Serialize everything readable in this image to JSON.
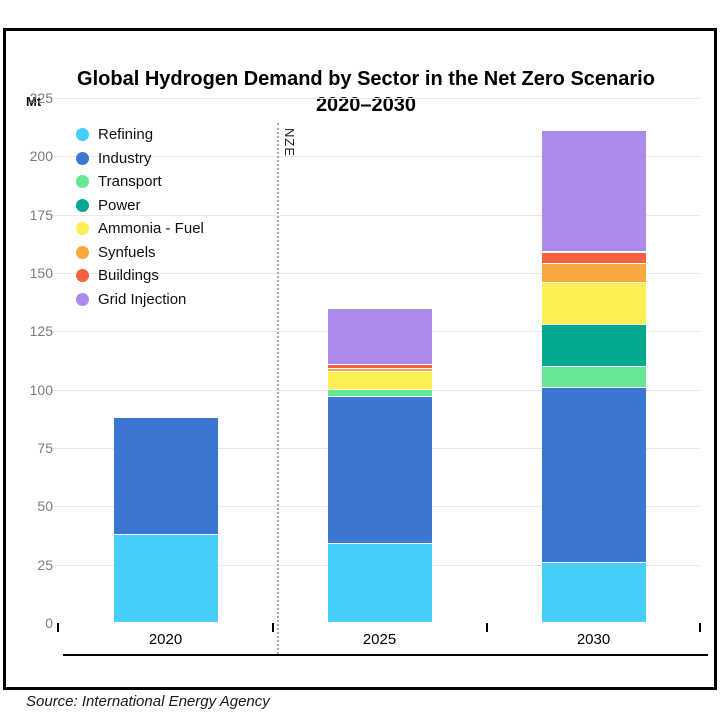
{
  "title": "Global Hydrogen Demand by Sector in the Net Zero Scenario",
  "subtitle": "2020–2030",
  "unit_label": "Mt",
  "annotation": "NZE",
  "source": "Source: International Energy Agency",
  "colors": {
    "refining": "#45CEF7",
    "industry": "#3C76D2",
    "transport": "#67E795",
    "power": "#04A88E",
    "ammonia_fuel": "#FBEF53",
    "synfuels": "#F9A73F",
    "buildings": "#F4613F",
    "grid_injection": "#AB8BE9",
    "gridline": "#e9e9e9",
    "axis": "#000000",
    "tick_label": "#7c7c7c"
  },
  "chart_data": {
    "type": "bar",
    "stacked": true,
    "title": "Global Hydrogen Demand by Sector in the Net Zero Scenario 2020–2030",
    "xlabel": "",
    "ylabel": "Mt",
    "ylim": [
      0,
      225
    ],
    "yticks": [
      0,
      25,
      50,
      75,
      100,
      125,
      150,
      175,
      200,
      225
    ],
    "grid": true,
    "legend_position": "top-left",
    "categories": [
      "2020",
      "2025",
      "2030"
    ],
    "series": [
      {
        "name": "Refining",
        "color": "#45CEF7",
        "values": [
          38,
          34,
          26
        ]
      },
      {
        "name": "Industry",
        "color": "#3C76D2",
        "values": [
          50,
          63,
          75
        ]
      },
      {
        "name": "Transport",
        "color": "#67E795",
        "values": [
          0,
          3,
          9
        ]
      },
      {
        "name": "Power",
        "color": "#04A88E",
        "values": [
          0,
          0,
          18
        ]
      },
      {
        "name": "Ammonia - Fuel",
        "color": "#FBEF53",
        "values": [
          0,
          8,
          18
        ]
      },
      {
        "name": "Synfuels",
        "color": "#F9A73F",
        "values": [
          0,
          1,
          8
        ]
      },
      {
        "name": "Buildings",
        "color": "#F4613F",
        "values": [
          0,
          2,
          5
        ]
      },
      {
        "name": "Grid Injection",
        "color": "#AB8BE9",
        "values": [
          0,
          24,
          52
        ]
      }
    ],
    "totals": [
      88,
      135,
      211
    ],
    "annotations": [
      {
        "text": "NZE",
        "type": "vertical-dotted-line",
        "between": [
          "2020",
          "2025"
        ]
      }
    ]
  }
}
